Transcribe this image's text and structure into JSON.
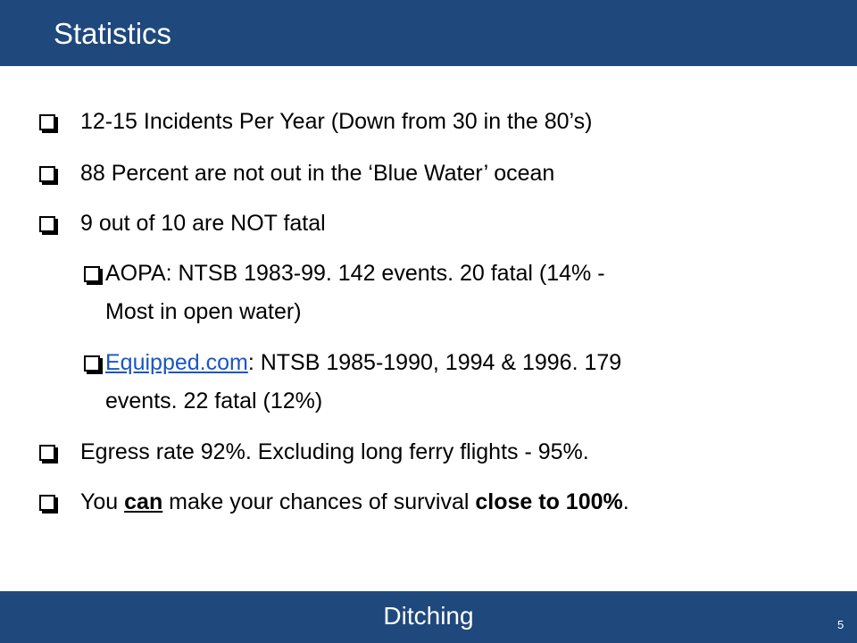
{
  "slide": {
    "title": "Statistics",
    "footer": "Ditching",
    "page_number": "5"
  },
  "bullets": [
    {
      "text": "12-15 Incidents Per Year (Down from 30 in the 80’s)"
    },
    {
      "text": "88 Percent are not out in the ‘Blue Water’ ocean"
    },
    {
      "text": "9 out of 10 are NOT fatal"
    },
    {
      "line1": "AOPA: NTSB 1983-99. 142 events. 20 fatal (14% -",
      "line2": "Most in open water)"
    },
    {
      "link": "Equipped.com",
      "line1_rest": ": NTSB 1985-1990, 1994 & 1996. 179",
      "line2": "events. 22 fatal (12%)"
    },
    {
      "text": "Egress rate 92%. Excluding long ferry flights - 95%."
    },
    {
      "part1": "You ",
      "emph": "can",
      "part2": " make your chances of survival ",
      "strong": "close to 100%",
      "end": "."
    }
  ]
}
